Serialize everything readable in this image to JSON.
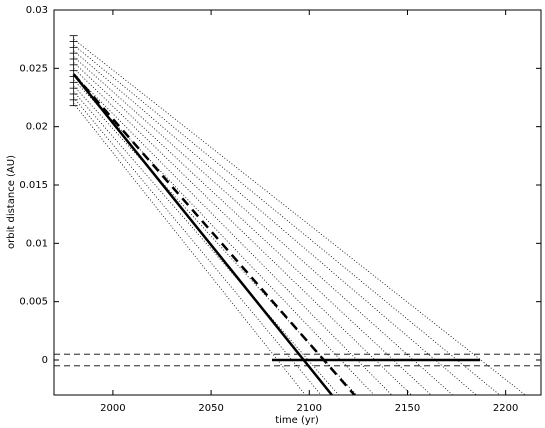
{
  "chart_data": {
    "type": "line",
    "xlabel": "time (yr)",
    "ylabel": "orbit distance (AU)",
    "xlim": [
      1970,
      2218
    ],
    "ylim": [
      -0.003,
      0.03
    ],
    "xticks": [
      2000,
      2050,
      2100,
      2150,
      2200
    ],
    "yticks": [
      0,
      0.005,
      0.01,
      0.015,
      0.02,
      0.025,
      0.03
    ],
    "series": [
      {
        "style": "dotted",
        "color": "#000000",
        "x": [
          1980,
          2098
        ],
        "values": [
          0.022,
          -0.003
        ]
      },
      {
        "style": "dotted",
        "color": "#000000",
        "x": [
          1980,
          2106
        ],
        "values": [
          0.0225,
          -0.003
        ]
      },
      {
        "style": "dotted",
        "color": "#000000",
        "x": [
          1980,
          2115
        ],
        "values": [
          0.023,
          -0.003
        ]
      },
      {
        "style": "dotted",
        "color": "#000000",
        "x": [
          1980,
          2124
        ],
        "values": [
          0.0235,
          -0.003
        ]
      },
      {
        "style": "dotted",
        "color": "#000000",
        "x": [
          1980,
          2133
        ],
        "values": [
          0.024,
          -0.003
        ]
      },
      {
        "style": "dotted",
        "color": "#000000",
        "x": [
          1980,
          2142
        ],
        "values": [
          0.0245,
          -0.003
        ]
      },
      {
        "style": "dotted",
        "color": "#000000",
        "x": [
          1980,
          2152
        ],
        "values": [
          0.025,
          -0.003
        ]
      },
      {
        "style": "dotted",
        "color": "#000000",
        "x": [
          1980,
          2162
        ],
        "values": [
          0.0255,
          -0.003
        ]
      },
      {
        "style": "dotted",
        "color": "#000000",
        "x": [
          1980,
          2173
        ],
        "values": [
          0.026,
          -0.003
        ]
      },
      {
        "style": "dotted",
        "color": "#000000",
        "x": [
          1980,
          2185
        ],
        "values": [
          0.0265,
          -0.003
        ]
      },
      {
        "style": "dotted",
        "color": "#000000",
        "x": [
          1980,
          2197
        ],
        "values": [
          0.027,
          -0.003
        ]
      },
      {
        "style": "dotted",
        "color": "#000000",
        "x": [
          1980,
          2210
        ],
        "values": [
          0.0275,
          -0.003
        ]
      },
      {
        "style": "dashed-thin",
        "color": "#000000",
        "x": [
          1970,
          2218
        ],
        "values": [
          0.0005,
          0.0005
        ]
      },
      {
        "style": "dashed-thin",
        "color": "#000000",
        "x": [
          1970,
          2218
        ],
        "values": [
          -0.0005,
          -0.0005
        ]
      },
      {
        "style": "solid",
        "color": "#000000",
        "x": [
          2081,
          2187
        ],
        "values": [
          0,
          0
        ]
      },
      {
        "style": "dashed",
        "color": "#000000",
        "x": [
          1980,
          2123
        ],
        "values": [
          0.0245,
          -0.003
        ]
      },
      {
        "style": "solid",
        "color": "#000000",
        "x": [
          1980,
          2111.5
        ],
        "values": [
          0.0245,
          -0.003
        ]
      }
    ],
    "start_ticks": {
      "x": 1980,
      "values": [
        0.0218,
        0.0223,
        0.0228,
        0.0233,
        0.0238,
        0.0243,
        0.0248,
        0.0253,
        0.0258,
        0.0263,
        0.0268,
        0.0273,
        0.0278
      ]
    }
  }
}
